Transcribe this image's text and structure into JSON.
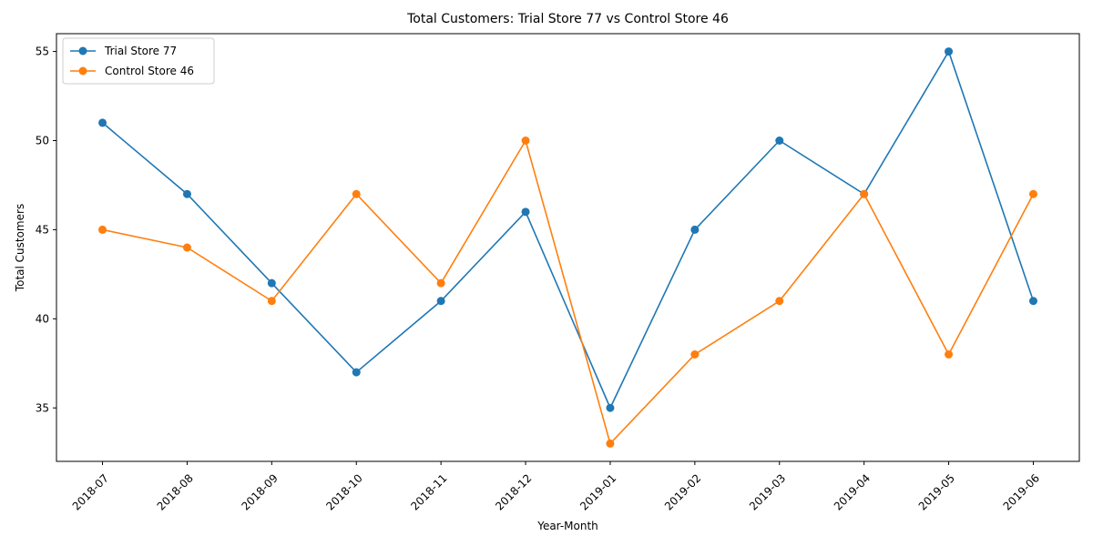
{
  "chart_data": {
    "type": "line",
    "title": "Total Customers: Trial Store 77 vs Control Store 46",
    "xlabel": "Year-Month",
    "ylabel": "Total Customers",
    "categories": [
      "2018-07",
      "2018-08",
      "2018-09",
      "2018-10",
      "2018-11",
      "2018-12",
      "2019-01",
      "2019-02",
      "2019-03",
      "2019-04",
      "2019-05",
      "2019-06"
    ],
    "yticks": [
      35,
      40,
      45,
      50,
      55
    ],
    "ylim": [
      32,
      56
    ],
    "grid": false,
    "legend": "upper-left",
    "series": [
      {
        "name": "Trial Store 77",
        "color": "#1f77b4",
        "values": [
          51,
          47,
          42,
          37,
          41,
          46,
          35,
          45,
          50,
          47,
          55,
          41
        ]
      },
      {
        "name": "Control Store 46",
        "color": "#ff7f0e",
        "values": [
          45,
          44,
          41,
          47,
          42,
          50,
          33,
          38,
          41,
          47,
          38,
          47
        ]
      }
    ]
  }
}
